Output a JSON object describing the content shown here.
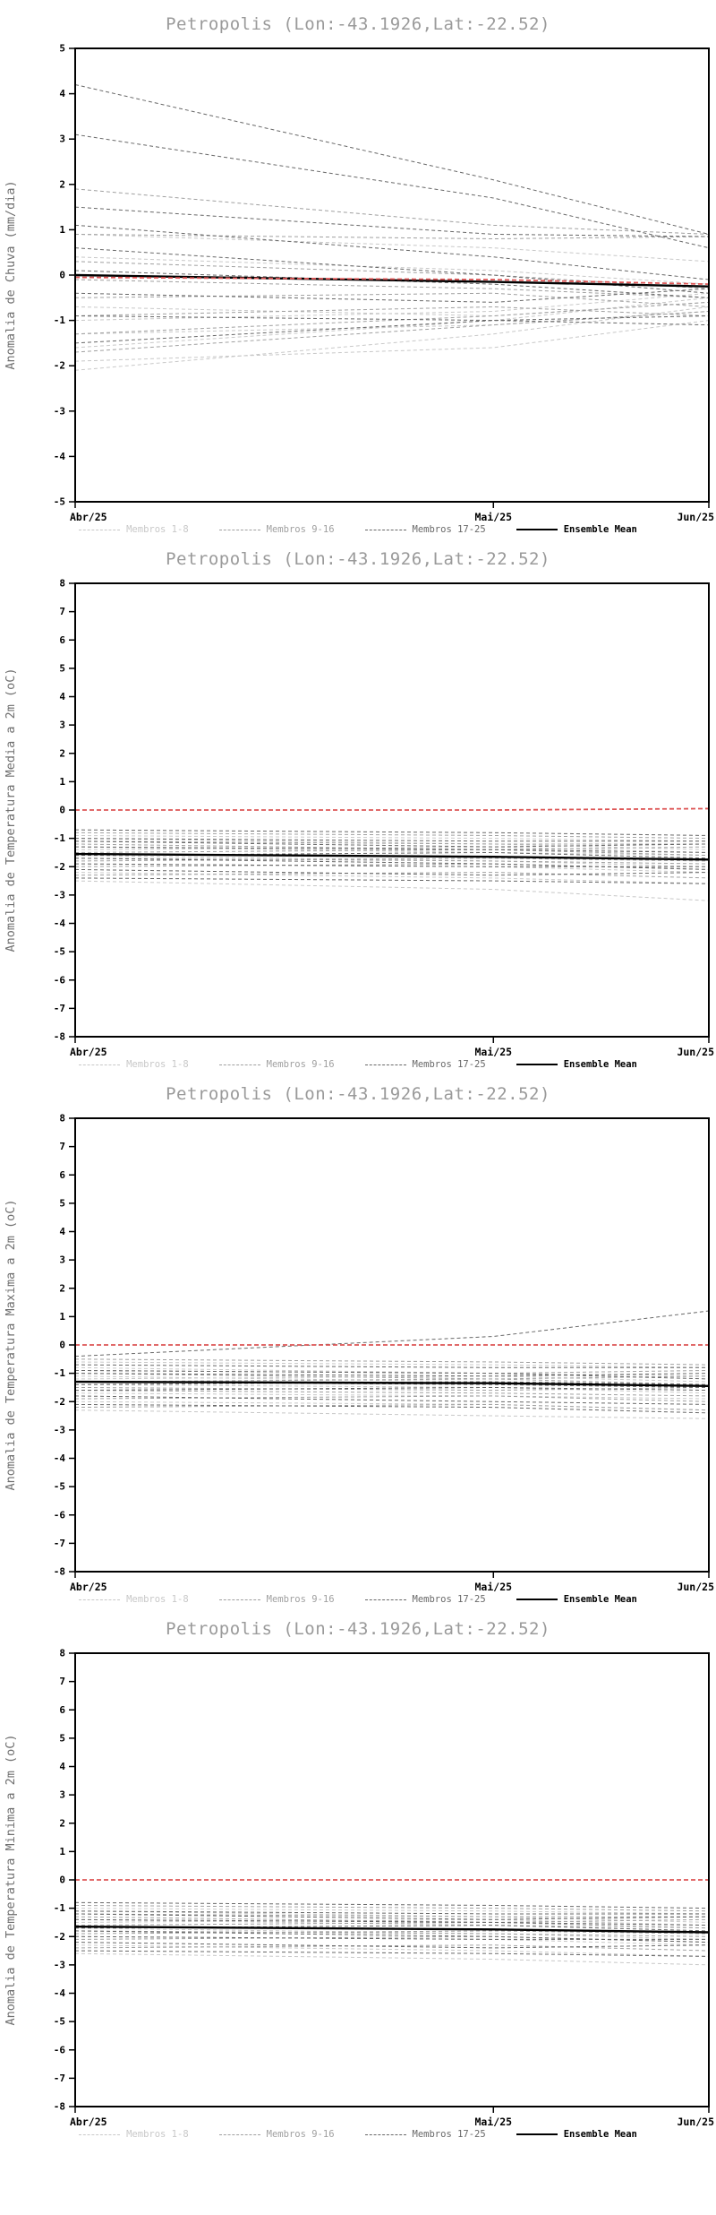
{
  "chart_data": [
    {
      "type": "line",
      "title": "Petropolis (Lon:-43.1926,Lat:-22.52)",
      "ylabel": "Anomalia de Chuva (mm/dia)",
      "x_tick_labels": [
        "Abr/25",
        "Mai/25",
        "Jun/25"
      ],
      "x_positions": [
        0,
        0.66,
        1
      ],
      "ylim": [
        -5,
        5
      ],
      "ytick_step": 1,
      "grid": false,
      "legend_position": "bottom",
      "legend": [
        {
          "label": "Membros 1-8",
          "color": "#c8c8c8",
          "style": "dashed"
        },
        {
          "label": "Membros 9-16",
          "color": "#a0a0a0",
          "style": "dashed"
        },
        {
          "label": "Membros 17-25",
          "color": "#686868",
          "style": "dashed"
        },
        {
          "label": "Ensemble Mean",
          "color": "#000000",
          "style": "solid"
        }
      ],
      "series": [
        {
          "name": "Membros 1-8",
          "color": "#c8c8c8",
          "dash": "4 3",
          "width": 1,
          "members": [
            [
              -2.1,
              -1.3,
              -0.7
            ],
            [
              -1.9,
              -1.6,
              -1.0
            ],
            [
              -1.6,
              -1.0,
              -0.5
            ],
            [
              -1.3,
              -1.1,
              -0.8
            ],
            [
              -1.0,
              -0.8,
              -0.4
            ],
            [
              -0.7,
              -0.9,
              -0.6
            ],
            [
              0.9,
              0.6,
              0.3
            ],
            [
              0.4,
              0.1,
              -0.2
            ]
          ]
        },
        {
          "name": "Membros 9-16",
          "color": "#a0a0a0",
          "dash": "4 3",
          "width": 1,
          "members": [
            [
              1.9,
              1.1,
              0.9
            ],
            [
              0.9,
              0.8,
              0.85
            ],
            [
              0.3,
              0.0,
              -0.3
            ],
            [
              -0.1,
              -0.3,
              -0.5
            ],
            [
              -0.5,
              -0.4,
              -0.7
            ],
            [
              -0.9,
              -0.7,
              -0.9
            ],
            [
              -1.3,
              -0.9,
              -0.6
            ],
            [
              -1.7,
              -1.1,
              -0.8
            ]
          ]
        },
        {
          "name": "Membros 17-25",
          "color": "#686868",
          "dash": "4 3",
          "width": 1,
          "members": [
            [
              4.2,
              2.1,
              0.9
            ],
            [
              3.1,
              1.7,
              0.6
            ],
            [
              1.5,
              0.9,
              0.85
            ],
            [
              1.1,
              0.4,
              -0.1
            ],
            [
              0.6,
              0.0,
              -0.4
            ],
            [
              0.1,
              -0.2,
              -0.5
            ],
            [
              -0.4,
              -0.6,
              -0.3
            ],
            [
              -0.9,
              -1.0,
              -0.9
            ],
            [
              -1.5,
              -1.0,
              -1.1
            ]
          ]
        },
        {
          "name": "Ensemble Mean",
          "color": "#000000",
          "dash": "",
          "width": 2.4,
          "members": [
            [
              0.0,
              -0.15,
              -0.25
            ]
          ]
        },
        {
          "name": "Zero Reference",
          "color": "#dd5555",
          "dash": "5 3",
          "width": 1.8,
          "members": [
            [
              -0.05,
              -0.1,
              -0.2
            ]
          ]
        }
      ]
    },
    {
      "type": "line",
      "title": "Petropolis (Lon:-43.1926,Lat:-22.52)",
      "ylabel": "Anomalia de Temperatura Media a 2m (oC)",
      "x_tick_labels": [
        "Abr/25",
        "Mai/25",
        "Jun/25"
      ],
      "x_positions": [
        0,
        0.66,
        1
      ],
      "ylim": [
        -8,
        8
      ],
      "ytick_step": 1,
      "grid": false,
      "legend_position": "bottom",
      "legend": [
        {
          "label": "Membros 1-8",
          "color": "#c8c8c8",
          "style": "dashed"
        },
        {
          "label": "Membros 9-16",
          "color": "#a0a0a0",
          "style": "dashed"
        },
        {
          "label": "Membros 17-25",
          "color": "#686868",
          "style": "dashed"
        },
        {
          "label": "Ensemble Mean",
          "color": "#000000",
          "style": "solid"
        }
      ],
      "series": [
        {
          "name": "Membros 1-8",
          "color": "#c8c8c8",
          "dash": "4 3",
          "width": 1,
          "members": [
            [
              -1.0,
              -1.2,
              -1.4
            ],
            [
              -1.3,
              -1.5,
              -1.6
            ],
            [
              -1.6,
              -1.8,
              -2.0
            ],
            [
              -1.9,
              -2.0,
              -2.2
            ],
            [
              -2.2,
              -2.4,
              -2.6
            ],
            [
              -2.5,
              -2.8,
              -3.2
            ],
            [
              -0.9,
              -1.0,
              -1.1
            ],
            [
              -1.4,
              -1.3,
              -1.5
            ]
          ]
        },
        {
          "name": "Membros 9-16",
          "color": "#a0a0a0",
          "dash": "4 3",
          "width": 1,
          "members": [
            [
              -0.8,
              -0.9,
              -1.0
            ],
            [
              -1.1,
              -1.2,
              -1.2
            ],
            [
              -1.5,
              -1.4,
              -1.6
            ],
            [
              -1.7,
              -1.8,
              -1.9
            ],
            [
              -2.0,
              -1.9,
              -2.1
            ],
            [
              -2.3,
              -2.2,
              -2.4
            ],
            [
              -1.2,
              -1.4,
              -1.3
            ],
            [
              -1.8,
              -1.7,
              -1.8
            ]
          ]
        },
        {
          "name": "Membros 17-25",
          "color": "#686868",
          "dash": "4 3",
          "width": 1,
          "members": [
            [
              -0.7,
              -0.8,
              -0.9
            ],
            [
              -1.0,
              -1.1,
              -1.1
            ],
            [
              -1.3,
              -1.4,
              -1.5
            ],
            [
              -1.6,
              -1.5,
              -1.7
            ],
            [
              -1.9,
              -2.0,
              -2.0
            ],
            [
              -2.1,
              -2.3,
              -2.2
            ],
            [
              -2.4,
              -2.5,
              -2.6
            ],
            [
              -1.1,
              -1.3,
              -1.2
            ],
            [
              -1.7,
              -1.9,
              -2.1
            ]
          ]
        },
        {
          "name": "Ensemble Mean",
          "color": "#000000",
          "dash": "",
          "width": 2.4,
          "members": [
            [
              -1.55,
              -1.65,
              -1.75
            ]
          ]
        },
        {
          "name": "Zero Reference",
          "color": "#dd5555",
          "dash": "5 3",
          "width": 1.8,
          "members": [
            [
              0,
              0,
              0.05
            ]
          ]
        }
      ]
    },
    {
      "type": "line",
      "title": "Petropolis (Lon:-43.1926,Lat:-22.52)",
      "ylabel": "Anomalia de Temperatura Maxima a 2m (oC)",
      "x_tick_labels": [
        "Abr/25",
        "Mai/25",
        "Jun/25"
      ],
      "x_positions": [
        0,
        0.66,
        1
      ],
      "ylim": [
        -8,
        8
      ],
      "ytick_step": 1,
      "grid": false,
      "legend_position": "bottom",
      "legend": [
        {
          "label": "Membros 1-8",
          "color": "#c8c8c8",
          "style": "dashed"
        },
        {
          "label": "Membros 9-16",
          "color": "#a0a0a0",
          "style": "dashed"
        },
        {
          "label": "Membros 17-25",
          "color": "#686868",
          "style": "dashed"
        },
        {
          "label": "Ensemble Mean",
          "color": "#000000",
          "style": "solid"
        }
      ],
      "series": [
        {
          "name": "Membros 1-8",
          "color": "#c8c8c8",
          "dash": "4 3",
          "width": 1,
          "members": [
            [
              -0.8,
              -1.0,
              -1.1
            ],
            [
              -1.1,
              -1.3,
              -1.4
            ],
            [
              -1.4,
              -1.5,
              -1.7
            ],
            [
              -1.7,
              -1.8,
              -1.9
            ],
            [
              -2.0,
              -2.1,
              -2.3
            ],
            [
              -2.3,
              -2.5,
              -2.6
            ],
            [
              -0.6,
              -0.7,
              -0.8
            ],
            [
              -1.2,
              -1.1,
              -1.3
            ]
          ]
        },
        {
          "name": "Membros 9-16",
          "color": "#a0a0a0",
          "dash": "4 3",
          "width": 1,
          "members": [
            [
              -0.5,
              -0.6,
              -0.7
            ],
            [
              -0.9,
              -1.0,
              -0.9
            ],
            [
              -1.3,
              -1.2,
              -1.4
            ],
            [
              -1.6,
              -1.7,
              -1.8
            ],
            [
              -1.9,
              -1.8,
              -2.0
            ],
            [
              -2.2,
              -2.1,
              -2.3
            ],
            [
              -1.0,
              -1.2,
              -1.1
            ],
            [
              -1.5,
              -1.6,
              -1.5
            ]
          ]
        },
        {
          "name": "Membros 17-25",
          "color": "#686868",
          "dash": "4 3",
          "width": 1,
          "members": [
            [
              -0.4,
              0.3,
              1.2
            ],
            [
              -0.7,
              -0.8,
              -0.8
            ],
            [
              -1.0,
              -1.1,
              -1.0
            ],
            [
              -1.3,
              -1.4,
              -1.5
            ],
            [
              -1.6,
              -1.5,
              -1.6
            ],
            [
              -1.8,
              -2.0,
              -2.1
            ],
            [
              -2.1,
              -2.2,
              -2.4
            ],
            [
              -0.9,
              -1.0,
              -1.2
            ],
            [
              -1.4,
              -1.3,
              -1.4
            ]
          ]
        },
        {
          "name": "Ensemble Mean",
          "color": "#000000",
          "dash": "",
          "width": 2.4,
          "members": [
            [
              -1.3,
              -1.35,
              -1.45
            ]
          ]
        },
        {
          "name": "Zero Reference",
          "color": "#dd5555",
          "dash": "5 3",
          "width": 1.8,
          "members": [
            [
              0,
              0,
              0
            ]
          ]
        }
      ]
    },
    {
      "type": "line",
      "title": "Petropolis (Lon:-43.1926,Lat:-22.52)",
      "ylabel": "Anomalia de Temperatura Minima a 2m (oC)",
      "x_tick_labels": [
        "Abr/25",
        "Mai/25",
        "Jun/25"
      ],
      "x_positions": [
        0,
        0.66,
        1
      ],
      "ylim": [
        -8,
        8
      ],
      "ytick_step": 1,
      "grid": false,
      "legend_position": "bottom",
      "legend": [
        {
          "label": "Membros 1-8",
          "color": "#c8c8c8",
          "style": "dashed"
        },
        {
          "label": "Membros 9-16",
          "color": "#a0a0a0",
          "style": "dashed"
        },
        {
          "label": "Membros 17-25",
          "color": "#686868",
          "style": "dashed"
        },
        {
          "label": "Ensemble Mean",
          "color": "#000000",
          "style": "solid"
        }
      ],
      "series": [
        {
          "name": "Membros 1-8",
          "color": "#c8c8c8",
          "dash": "4 3",
          "width": 1,
          "members": [
            [
              -1.1,
              -1.3,
              -1.5
            ],
            [
              -1.4,
              -1.6,
              -1.7
            ],
            [
              -1.7,
              -1.9,
              -2.1
            ],
            [
              -2.0,
              -2.1,
              -2.3
            ],
            [
              -2.3,
              -2.5,
              -2.7
            ],
            [
              -2.6,
              -2.8,
              -3.0
            ],
            [
              -1.0,
              -1.1,
              -1.2
            ],
            [
              -1.5,
              -1.4,
              -1.6
            ]
          ]
        },
        {
          "name": "Membros 9-16",
          "color": "#a0a0a0",
          "dash": "4 3",
          "width": 1,
          "members": [
            [
              -0.9,
              -1.0,
              -1.1
            ],
            [
              -1.2,
              -1.3,
              -1.3
            ],
            [
              -1.6,
              -1.5,
              -1.7
            ],
            [
              -1.8,
              -1.9,
              -2.0
            ],
            [
              -2.1,
              -2.0,
              -2.2
            ],
            [
              -2.4,
              -2.3,
              -2.5
            ],
            [
              -1.3,
              -1.5,
              -1.4
            ],
            [
              -1.9,
              -1.8,
              -1.9
            ]
          ]
        },
        {
          "name": "Membros 17-25",
          "color": "#686868",
          "dash": "4 3",
          "width": 1,
          "members": [
            [
              -0.8,
              -0.9,
              -1.0
            ],
            [
              -1.1,
              -1.2,
              -1.2
            ],
            [
              -1.4,
              -1.5,
              -1.6
            ],
            [
              -1.7,
              -1.6,
              -1.8
            ],
            [
              -2.0,
              -2.1,
              -2.1
            ],
            [
              -2.2,
              -2.4,
              -2.3
            ],
            [
              -2.5,
              -2.6,
              -2.7
            ],
            [
              -1.2,
              -1.4,
              -1.3
            ],
            [
              -1.8,
              -2.0,
              -2.2
            ]
          ]
        },
        {
          "name": "Ensemble Mean",
          "color": "#000000",
          "dash": "",
          "width": 2.4,
          "members": [
            [
              -1.65,
              -1.75,
              -1.85
            ]
          ]
        },
        {
          "name": "Zero Reference",
          "color": "#dd5555",
          "dash": "5 3",
          "width": 1.8,
          "members": [
            [
              0,
              0,
              0
            ]
          ]
        }
      ]
    }
  ]
}
